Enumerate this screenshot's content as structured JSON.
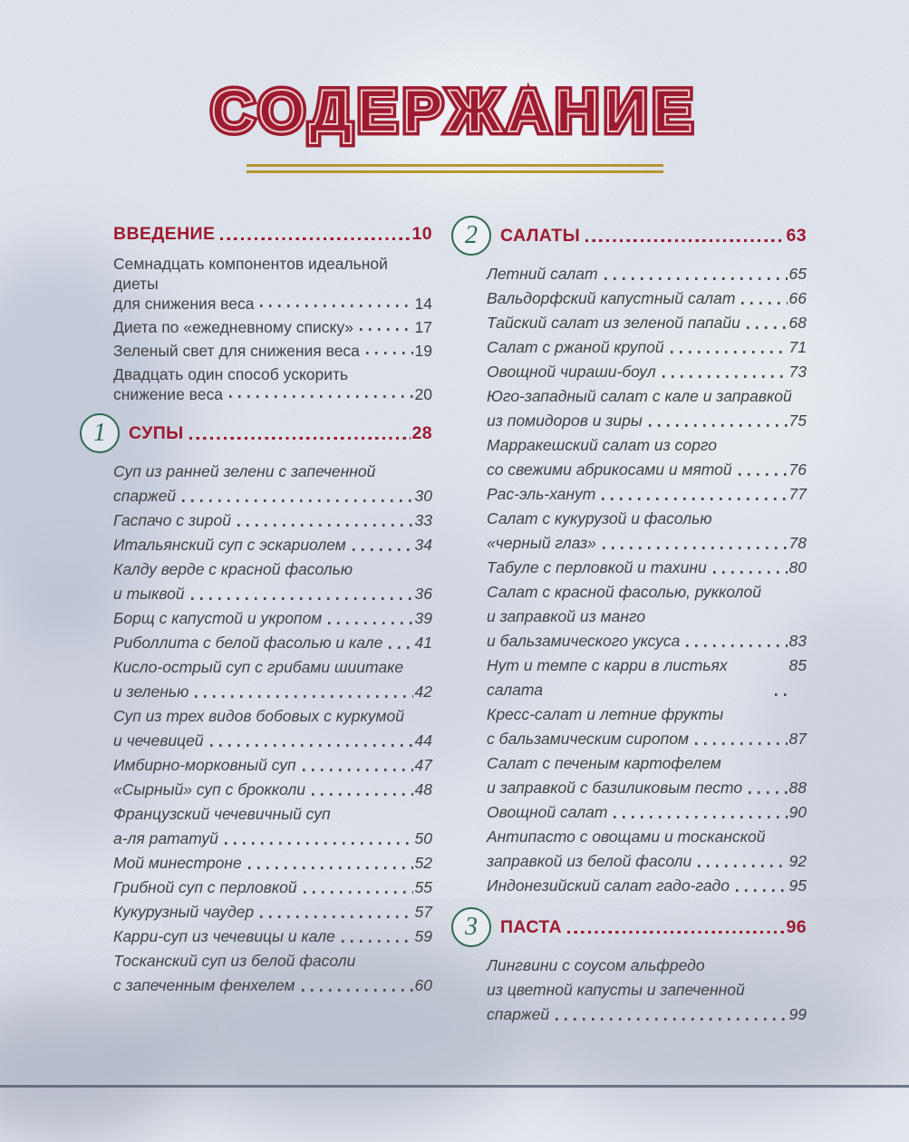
{
  "page": {
    "title": "СОДЕРЖАНИЕ",
    "colors": {
      "heading_red": "#9c1b31",
      "title_inner_line": "#ecc9c7",
      "chapter_circle_green": "#2e6a52",
      "gold_rule": "#b5962f",
      "body_text": "#3f4044",
      "background": "#e2e6ed"
    }
  },
  "sections": {
    "intro": {
      "title": "ВВЕДЕНИЕ",
      "page": "10",
      "items": [
        {
          "lines": [
            "Семнадцать компонентов идеальной диеты",
            "для снижения веса"
          ],
          "page": "14"
        },
        {
          "lines": [
            "Диета по «ежедневному списку»"
          ],
          "page": "17"
        },
        {
          "lines": [
            "Зеленый свет для снижения веса"
          ],
          "page": "19"
        },
        {
          "lines": [
            "Двадцать один способ ускорить",
            "снижение веса"
          ],
          "page": "20"
        }
      ]
    },
    "chapters": [
      {
        "num": "1",
        "title": "СУПЫ",
        "page": "28",
        "column": "left",
        "items": [
          {
            "lines": [
              "Суп из ранней зелени с запеченной",
              "спаржей"
            ],
            "page": "30"
          },
          {
            "lines": [
              "Гаспачо с зирой"
            ],
            "page": "33"
          },
          {
            "lines": [
              "Итальянский суп с эскариолем"
            ],
            "page": "34"
          },
          {
            "lines": [
              "Калду верде с красной фасолью",
              "и тыквой"
            ],
            "page": "36"
          },
          {
            "lines": [
              "Борщ с капустой и укропом"
            ],
            "page": "39"
          },
          {
            "lines": [
              "Риболлита с белой фасолью и кале"
            ],
            "page": "41"
          },
          {
            "lines": [
              "Кисло-острый суп с грибами шиитаке",
              "и зеленью"
            ],
            "page": "42"
          },
          {
            "lines": [
              "Суп из трех видов бобовых с куркумой",
              "и чечевицей"
            ],
            "page": "44"
          },
          {
            "lines": [
              "Имбирно-морковный суп"
            ],
            "page": "47"
          },
          {
            "lines": [
              "«Сырный» суп с брокколи"
            ],
            "page": "48"
          },
          {
            "lines": [
              "Французский чечевичный суп",
              "а-ля рататуй"
            ],
            "page": "50"
          },
          {
            "lines": [
              "Мой минестроне"
            ],
            "page": "52"
          },
          {
            "lines": [
              "Грибной суп с перловкой"
            ],
            "page": "55"
          },
          {
            "lines": [
              "Кукурузный чаудер"
            ],
            "page": "57"
          },
          {
            "lines": [
              "Карри-суп из чечевицы и кале"
            ],
            "page": "59"
          },
          {
            "lines": [
              "Тосканский суп из белой фасоли",
              "с запеченным фенхелем"
            ],
            "page": "60"
          }
        ]
      },
      {
        "num": "2",
        "title": "САЛАТЫ",
        "page": "63",
        "column": "right",
        "items": [
          {
            "lines": [
              "Летний салат"
            ],
            "page": "65"
          },
          {
            "lines": [
              "Вальдорфский капустный салат"
            ],
            "page": "66"
          },
          {
            "lines": [
              "Тайский салат из зеленой папайи"
            ],
            "page": "68"
          },
          {
            "lines": [
              "Салат с ржаной крупой"
            ],
            "page": "71"
          },
          {
            "lines": [
              "Овощной чираши-боул"
            ],
            "page": "73"
          },
          {
            "lines": [
              "Юго-западный салат с кале и заправкой",
              "из помидоров и зиры"
            ],
            "page": "75"
          },
          {
            "lines": [
              "Марракешский салат из сорго",
              "со свежими абрикосами и мятой"
            ],
            "page": "76"
          },
          {
            "lines": [
              "Рас-эль-ханут"
            ],
            "page": "77"
          },
          {
            "lines": [
              "Салат с кукурузой и фасолью",
              "«черный глаз»"
            ],
            "page": "78"
          },
          {
            "lines": [
              "Табуле с перловкой и тахини"
            ],
            "page": "80"
          },
          {
            "lines": [
              "Салат с красной фасолью, рукколой",
              "и заправкой из манго",
              "и бальзамического уксуса"
            ],
            "page": "83"
          },
          {
            "lines": [
              "Нут и темпе с карри в листьях салата"
            ],
            "page": "85"
          },
          {
            "lines": [
              "Кресс-салат и летние фрукты",
              "с бальзамическим сиропом"
            ],
            "page": "87"
          },
          {
            "lines": [
              "Салат с печеным картофелем",
              "и заправкой с базиликовым песто"
            ],
            "page": "88"
          },
          {
            "lines": [
              "Овощной салат"
            ],
            "page": "90"
          },
          {
            "lines": [
              "Антипасто с овощами и тосканской",
              "заправкой из белой фасоли"
            ],
            "page": "92"
          },
          {
            "lines": [
              "Индонезийский салат гадо-гадо"
            ],
            "page": "95"
          }
        ]
      },
      {
        "num": "3",
        "title": "ПАСТА",
        "page": "96",
        "column": "right",
        "items": [
          {
            "lines": [
              "Лингвини с соусом альфредо",
              "из цветной капусты и запеченной",
              "спаржей"
            ],
            "page": "99"
          }
        ]
      }
    ]
  }
}
